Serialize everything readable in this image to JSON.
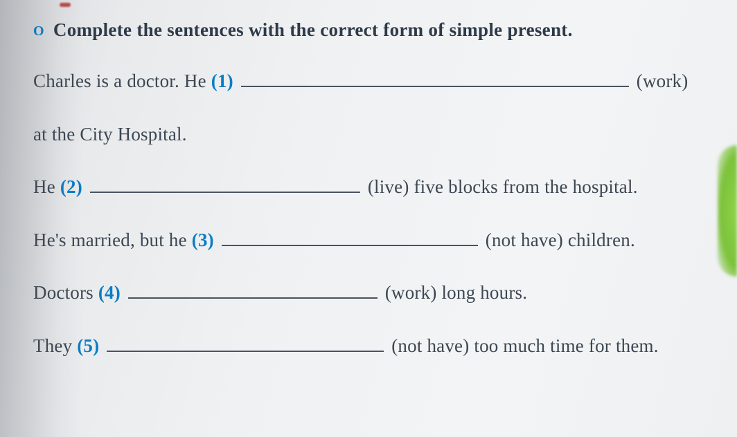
{
  "instruction": {
    "bullet": "O",
    "text": "Complete the sentences with the correct form of simple present."
  },
  "sentences": {
    "line1": {
      "pre": "Charles is a doctor. He ",
      "num": "(1)",
      "post": " (work)",
      "blank_width": 560
    },
    "line2": {
      "text": "at the City Hospital."
    },
    "line3": {
      "pre": "He ",
      "num": "(2)",
      "post": " (live) five blocks from the hospital.",
      "blank_width": 390
    },
    "line4": {
      "pre": "He's married, but he ",
      "num": "(3)",
      "post": " (not have) children.",
      "blank_width": 370
    },
    "line5": {
      "pre": "Doctors ",
      "num": "(4)",
      "post": " (work) long hours.",
      "blank_width": 360
    },
    "line6": {
      "pre": "They ",
      "num": "(5)",
      "post": " (not have) too much time for them.",
      "blank_width": 400
    }
  },
  "colors": {
    "text": "#3a4450",
    "number": "#0a7dc5",
    "underline": "#4a5360",
    "bg_light": "#f2f4f6",
    "bg_dark": "#d8dadd",
    "green_edge": "#8ed34a"
  },
  "typography": {
    "instruction_fontsize": 27,
    "instruction_weight": "bold",
    "body_fontsize": 27,
    "font_family": "Georgia, serif"
  }
}
